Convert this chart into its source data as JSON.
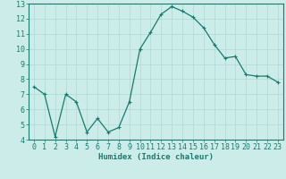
{
  "x": [
    0,
    1,
    2,
    3,
    4,
    5,
    6,
    7,
    8,
    9,
    10,
    11,
    12,
    13,
    14,
    15,
    16,
    17,
    18,
    19,
    20,
    21,
    22,
    23
  ],
  "y": [
    7.5,
    7.0,
    4.2,
    7.0,
    6.5,
    4.5,
    5.4,
    4.5,
    4.8,
    6.5,
    10.0,
    11.1,
    12.3,
    12.8,
    12.5,
    12.1,
    11.4,
    10.3,
    9.4,
    9.5,
    8.3,
    8.2,
    8.2,
    7.8
  ],
  "line_color": "#1a7a6e",
  "marker": "+",
  "marker_size": 3,
  "marker_linewidth": 0.8,
  "line_width": 0.9,
  "bg_color": "#ccecea",
  "grid_color": "#b0d8d5",
  "xlabel": "Humidex (Indice chaleur)",
  "xlim": [
    -0.5,
    23.5
  ],
  "ylim": [
    4.0,
    13.0
  ],
  "yticks": [
    4,
    5,
    6,
    7,
    8,
    9,
    10,
    11,
    12,
    13
  ],
  "xticks": [
    0,
    1,
    2,
    3,
    4,
    5,
    6,
    7,
    8,
    9,
    10,
    11,
    12,
    13,
    14,
    15,
    16,
    17,
    18,
    19,
    20,
    21,
    22,
    23
  ],
  "xlabel_fontsize": 6.5,
  "tick_fontsize": 6.0,
  "tick_color": "#1a7a6e",
  "spine_color": "#1a7a6e"
}
